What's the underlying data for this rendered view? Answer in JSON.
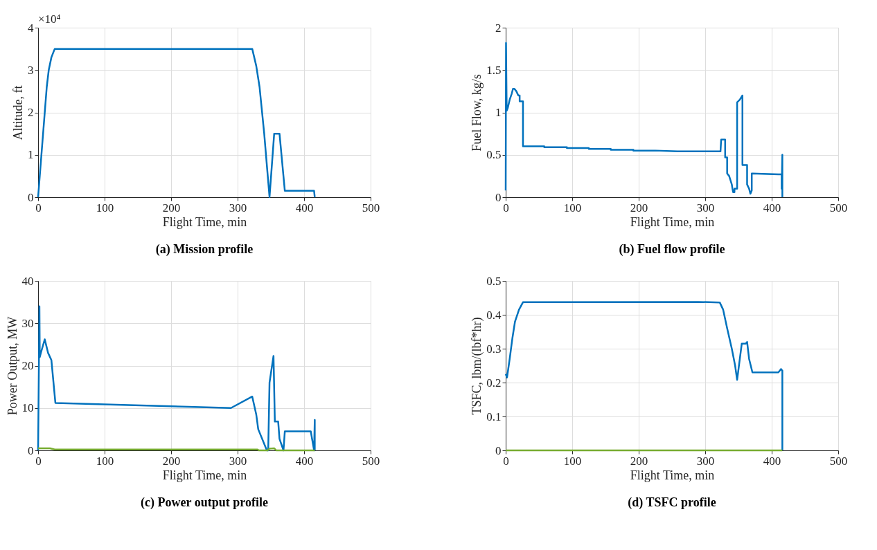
{
  "chart_data": [
    {
      "type": "line",
      "title": "(a) Mission profile",
      "xlabel": "Flight Time, min",
      "ylabel": "Altitude, ft",
      "annotations": [
        "×10⁴"
      ],
      "grid": true,
      "xlim": [
        0,
        500
      ],
      "xticks": [
        0,
        100,
        200,
        300,
        400,
        500
      ],
      "ylim": [
        0,
        4
      ],
      "yticks": [
        0,
        1,
        2,
        3,
        4
      ],
      "series": [
        {
          "color": "#0072bd",
          "x": [
            0,
            5,
            10,
            13,
            16,
            20,
            25,
            322,
            328,
            333,
            340,
            348,
            355,
            363,
            371,
            415,
            416
          ],
          "values": [
            0,
            1,
            2,
            2.6,
            3,
            3.3,
            3.5,
            3.5,
            3.1,
            2.6,
            1.5,
            0,
            1.5,
            1.5,
            0.15,
            0.15,
            0
          ]
        }
      ]
    },
    {
      "type": "line",
      "title": "(b) Fuel flow profile",
      "xlabel": "Flight Time, min",
      "ylabel": "Fuel Flow, kg/s",
      "grid": true,
      "xlim": [
        0,
        500
      ],
      "xticks": [
        0,
        100,
        200,
        300,
        400,
        500
      ],
      "ylim": [
        0,
        2
      ],
      "yticks": [
        0,
        0.5,
        1,
        1.5,
        2
      ],
      "series": [
        {
          "color": "#0072bd",
          "x": [
            0,
            0.5,
            1.5,
            3,
            6,
            9,
            11,
            13,
            16,
            19,
            21,
            21,
            26,
            26,
            58,
            58,
            92,
            92,
            125,
            125,
            158,
            158,
            192,
            192,
            225,
            258,
            290,
            323,
            324,
            330,
            330,
            333,
            333,
            336,
            338,
            340,
            341,
            342,
            344,
            344,
            348,
            348,
            352,
            356,
            356,
            363,
            363,
            366,
            368,
            370,
            370,
            410,
            415,
            415,
            416,
            416
          ],
          "values": [
            0.08,
            1.82,
            1.02,
            1.05,
            1.15,
            1.22,
            1.28,
            1.28,
            1.25,
            1.2,
            1.2,
            1.13,
            1.13,
            0.6,
            0.6,
            0.59,
            0.59,
            0.58,
            0.58,
            0.57,
            0.57,
            0.56,
            0.56,
            0.55,
            0.55,
            0.54,
            0.54,
            0.54,
            0.68,
            0.68,
            0.47,
            0.47,
            0.28,
            0.25,
            0.2,
            0.15,
            0.1,
            0.06,
            0.06,
            0.1,
            0.1,
            1.12,
            1.15,
            1.2,
            0.38,
            0.38,
            0.15,
            0.1,
            0.04,
            0.08,
            0.28,
            0.27,
            0.27,
            0.1,
            0.5,
            0
          ]
        }
      ]
    },
    {
      "type": "line",
      "title": "(c) Power output profile",
      "xlabel": "Flight Time, min",
      "ylabel": "Power Output, MW",
      "grid": true,
      "xlim": [
        0,
        500
      ],
      "xticks": [
        0,
        100,
        200,
        300,
        400,
        500
      ],
      "ylim": [
        0,
        40
      ],
      "yticks": [
        0,
        10,
        20,
        30,
        40
      ],
      "series": [
        {
          "color": "#0072bd",
          "x": [
            0,
            2,
            2.5,
            5,
            10,
            15,
            20,
            26,
            290,
            322,
            328,
            331,
            344,
            346,
            348,
            354,
            356,
            361,
            363,
            369,
            371,
            410,
            415,
            416,
            416
          ],
          "values": [
            0,
            34,
            22,
            23.5,
            26.2,
            23,
            21.3,
            11.2,
            10,
            12.7,
            8.5,
            5,
            0,
            0,
            16,
            22.3,
            6.8,
            6.8,
            2.7,
            0,
            4.5,
            4.5,
            0,
            7.2,
            0
          ]
        },
        {
          "color": "#77ac30",
          "x": [
            0,
            18,
            25,
            330,
            332,
            345,
            348,
            355,
            358,
            416
          ],
          "values": [
            0.5,
            0.5,
            0.2,
            0.2,
            0,
            0,
            0.4,
            0.5,
            0,
            0
          ]
        }
      ]
    },
    {
      "type": "line",
      "title": "(d) TSFC profile",
      "xlabel": "Flight Time, min",
      "ylabel": "TSFC, lbm/(lbf*hr)",
      "grid": true,
      "xlim": [
        0,
        500
      ],
      "xticks": [
        0,
        100,
        200,
        300,
        400,
        500
      ],
      "ylim": [
        0,
        0.5
      ],
      "yticks": [
        0,
        0.1,
        0.2,
        0.3,
        0.4,
        0.5
      ],
      "series": [
        {
          "color": "#0072bd",
          "x": [
            0,
            2,
            6,
            10,
            14,
            20,
            26,
            290,
            322,
            327,
            333,
            340,
            345,
            348,
            355,
            361,
            363,
            366,
            371,
            410,
            414,
            416,
            416
          ],
          "values": [
            0.225,
            0.215,
            0.27,
            0.33,
            0.38,
            0.415,
            0.437,
            0.438,
            0.436,
            0.415,
            0.36,
            0.3,
            0.25,
            0.208,
            0.315,
            0.315,
            0.32,
            0.27,
            0.23,
            0.23,
            0.24,
            0.235,
            0
          ]
        },
        {
          "color": "#77ac30",
          "x": [
            0,
            416
          ],
          "values": [
            0,
            0
          ]
        }
      ]
    }
  ]
}
